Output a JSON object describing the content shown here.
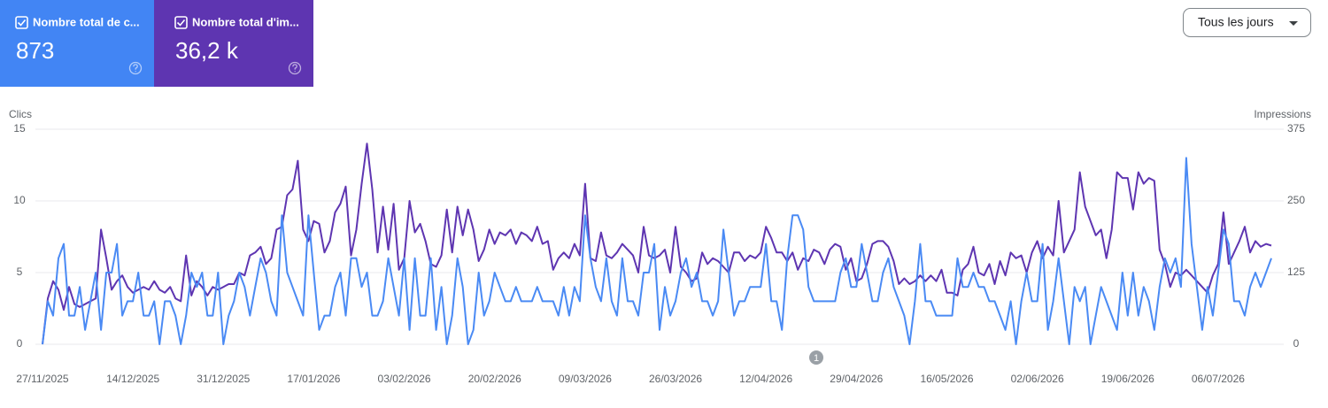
{
  "metrics": [
    {
      "label": "Nombre total de c...",
      "value": 873,
      "color": "#4285f4"
    },
    {
      "label": "Nombre total d'im...",
      "value": 36200,
      "value_label": "36,2 k",
      "color": "#5e35b1"
    }
  ],
  "range_selector": "Tous les jours",
  "chart_data": {
    "type": "line",
    "annotation": "1",
    "categories": [
      "27/11/2025",
      null,
      null,
      null,
      null,
      null,
      null,
      null,
      null,
      null,
      null,
      null,
      null,
      null,
      null,
      null,
      null,
      "14/12/2025",
      null,
      null,
      null,
      null,
      null,
      null,
      null,
      null,
      null,
      null,
      null,
      null,
      null,
      null,
      null,
      null,
      "31/12/2025",
      null,
      null,
      null,
      null,
      null,
      null,
      null,
      null,
      null,
      null,
      null,
      null,
      null,
      null,
      null,
      null,
      "17/01/2026",
      null,
      null,
      null,
      null,
      null,
      null,
      null,
      null,
      null,
      null,
      null,
      null,
      null,
      null,
      null,
      null,
      "03/02/2026",
      null,
      null,
      null,
      null,
      null,
      null,
      null,
      null,
      null,
      null,
      null,
      null,
      null,
      null,
      null,
      null,
      "20/02/2026",
      null,
      null,
      null,
      null,
      null,
      null,
      null,
      null,
      null,
      null,
      null,
      null,
      null,
      null,
      null,
      null,
      "09/03/2026",
      null,
      null,
      null,
      null,
      null,
      null,
      null,
      null,
      null,
      null,
      null,
      null,
      null,
      null,
      null,
      null,
      "26/03/2026",
      null,
      null,
      null,
      null,
      null,
      null,
      null,
      null,
      null,
      null,
      null,
      null,
      null,
      null,
      null,
      null,
      "12/04/2026",
      null,
      null,
      null,
      null,
      null,
      null,
      null,
      null,
      null,
      null,
      null,
      null,
      null,
      null,
      null,
      null,
      "29/04/2026",
      null,
      null,
      null,
      null,
      null,
      null,
      null,
      null,
      null,
      null,
      null,
      null,
      null,
      null,
      null,
      null,
      "16/05/2026",
      null,
      null,
      null,
      null,
      null,
      null,
      null,
      null,
      null,
      null,
      null,
      null,
      null,
      null,
      null,
      null,
      "02/06/2026",
      null,
      null,
      null,
      null,
      null,
      null,
      null,
      null,
      null,
      null,
      null,
      null,
      null,
      null,
      null,
      null,
      "19/06/2026",
      null,
      null,
      null,
      null,
      null,
      null,
      null,
      null,
      null,
      null,
      null,
      null,
      null,
      null,
      null,
      null,
      "06/07/2026",
      null,
      null,
      null,
      null,
      null,
      null,
      null,
      null,
      null,
      null
    ],
    "series": [
      {
        "name": "Clics",
        "color": "#4a8af4",
        "axis": "y",
        "values": [
          0,
          3,
          2,
          6,
          7,
          2,
          2,
          4,
          1,
          3,
          5,
          1,
          5,
          5,
          7,
          2,
          3,
          3,
          5,
          2,
          2,
          3,
          0,
          3,
          3,
          2,
          0,
          2,
          5,
          4,
          5,
          2,
          2,
          5,
          0,
          2,
          3,
          5,
          4,
          2,
          4,
          6,
          5,
          3,
          2,
          9,
          5,
          4,
          3,
          2,
          9,
          5,
          1,
          2,
          2,
          4,
          5,
          2,
          6,
          6,
          4,
          5,
          2,
          2,
          3,
          6,
          4,
          2,
          6,
          1,
          6,
          2,
          2,
          6,
          1,
          4,
          0,
          2,
          6,
          4,
          0,
          1,
          5,
          2,
          3,
          5,
          4,
          3,
          3,
          4,
          3,
          3,
          3,
          4,
          3,
          3,
          3,
          2,
          4,
          2,
          4,
          3,
          9,
          6,
          4,
          3,
          6,
          3,
          2,
          6,
          3,
          3,
          2,
          5,
          5,
          7,
          1,
          4,
          2,
          3,
          5,
          6,
          4,
          5,
          3,
          3,
          2,
          3,
          8,
          5,
          2,
          3,
          3,
          4,
          4,
          4,
          7,
          3,
          3,
          1,
          6,
          9,
          9,
          8,
          4,
          3,
          3,
          3,
          3,
          3,
          5,
          6,
          4,
          4,
          7,
          5,
          3,
          3,
          5,
          6,
          4,
          3,
          2,
          0,
          3,
          7,
          3,
          3,
          2,
          2,
          2,
          2,
          6,
          4,
          4,
          5,
          4,
          4,
          3,
          3,
          2,
          1,
          3,
          0,
          3,
          5,
          3,
          3,
          7,
          1,
          3,
          6,
          3,
          0,
          4,
          3,
          4,
          0,
          2,
          4,
          3,
          2,
          1,
          5,
          2,
          5,
          2,
          4,
          3,
          1,
          4,
          6,
          5,
          6,
          4,
          13,
          7,
          4,
          1,
          4,
          2,
          5,
          8,
          7,
          3,
          3,
          2,
          4,
          5,
          4,
          5,
          6
        ]
      },
      {
        "name": "Impressions",
        "color": "#5e35b1",
        "axis": "y2",
        "values": [
          0,
          80,
          110,
          95,
          60,
          100,
          70,
          65,
          70,
          75,
          80,
          200,
          150,
          95,
          110,
          120,
          100,
          90,
          95,
          100,
          95,
          110,
          95,
          90,
          100,
          80,
          75,
          155,
          85,
          110,
          100,
          85,
          100,
          95,
          100,
          105,
          105,
          125,
          120,
          155,
          160,
          170,
          140,
          150,
          200,
          205,
          260,
          270,
          320,
          200,
          180,
          215,
          210,
          160,
          180,
          230,
          245,
          275,
          155,
          200,
          280,
          350,
          270,
          160,
          240,
          165,
          245,
          130,
          150,
          250,
          195,
          210,
          180,
          140,
          135,
          155,
          235,
          160,
          240,
          190,
          235,
          200,
          145,
          165,
          200,
          175,
          195,
          190,
          200,
          175,
          195,
          190,
          180,
          205,
          175,
          180,
          130,
          150,
          160,
          150,
          175,
          155,
          280,
          150,
          145,
          195,
          155,
          150,
          160,
          175,
          165,
          155,
          125,
          205,
          155,
          150,
          155,
          165,
          125,
          205,
          135,
          125,
          110,
          115,
          160,
          140,
          150,
          145,
          135,
          125,
          160,
          160,
          145,
          155,
          150,
          160,
          205,
          185,
          160,
          160,
          145,
          160,
          130,
          150,
          145,
          165,
          160,
          140,
          165,
          175,
          170,
          130,
          150,
          110,
          115,
          140,
          175,
          180,
          180,
          170,
          145,
          105,
          115,
          105,
          110,
          120,
          110,
          120,
          110,
          130,
          90,
          90,
          85,
          130,
          140,
          170,
          125,
          120,
          140,
          105,
          145,
          120,
          160,
          150,
          155,
          125,
          160,
          180,
          150,
          170,
          155,
          250,
          160,
          180,
          200,
          300,
          240,
          215,
          190,
          200,
          150,
          200,
          300,
          290,
          290,
          235,
          300,
          280,
          290,
          285,
          165,
          140,
          100,
          125,
          120,
          130,
          120,
          110,
          100,
          90,
          120,
          140,
          230,
          140,
          160,
          180,
          205,
          160,
          180,
          170,
          175,
          172
        ]
      }
    ],
    "ylim": [
      0,
      15
    ],
    "yticks": [
      0,
      5,
      10,
      15
    ],
    "y2lim": [
      0,
      375
    ],
    "y2ticks": [
      0,
      125,
      250,
      375
    ],
    "grid": true
  }
}
